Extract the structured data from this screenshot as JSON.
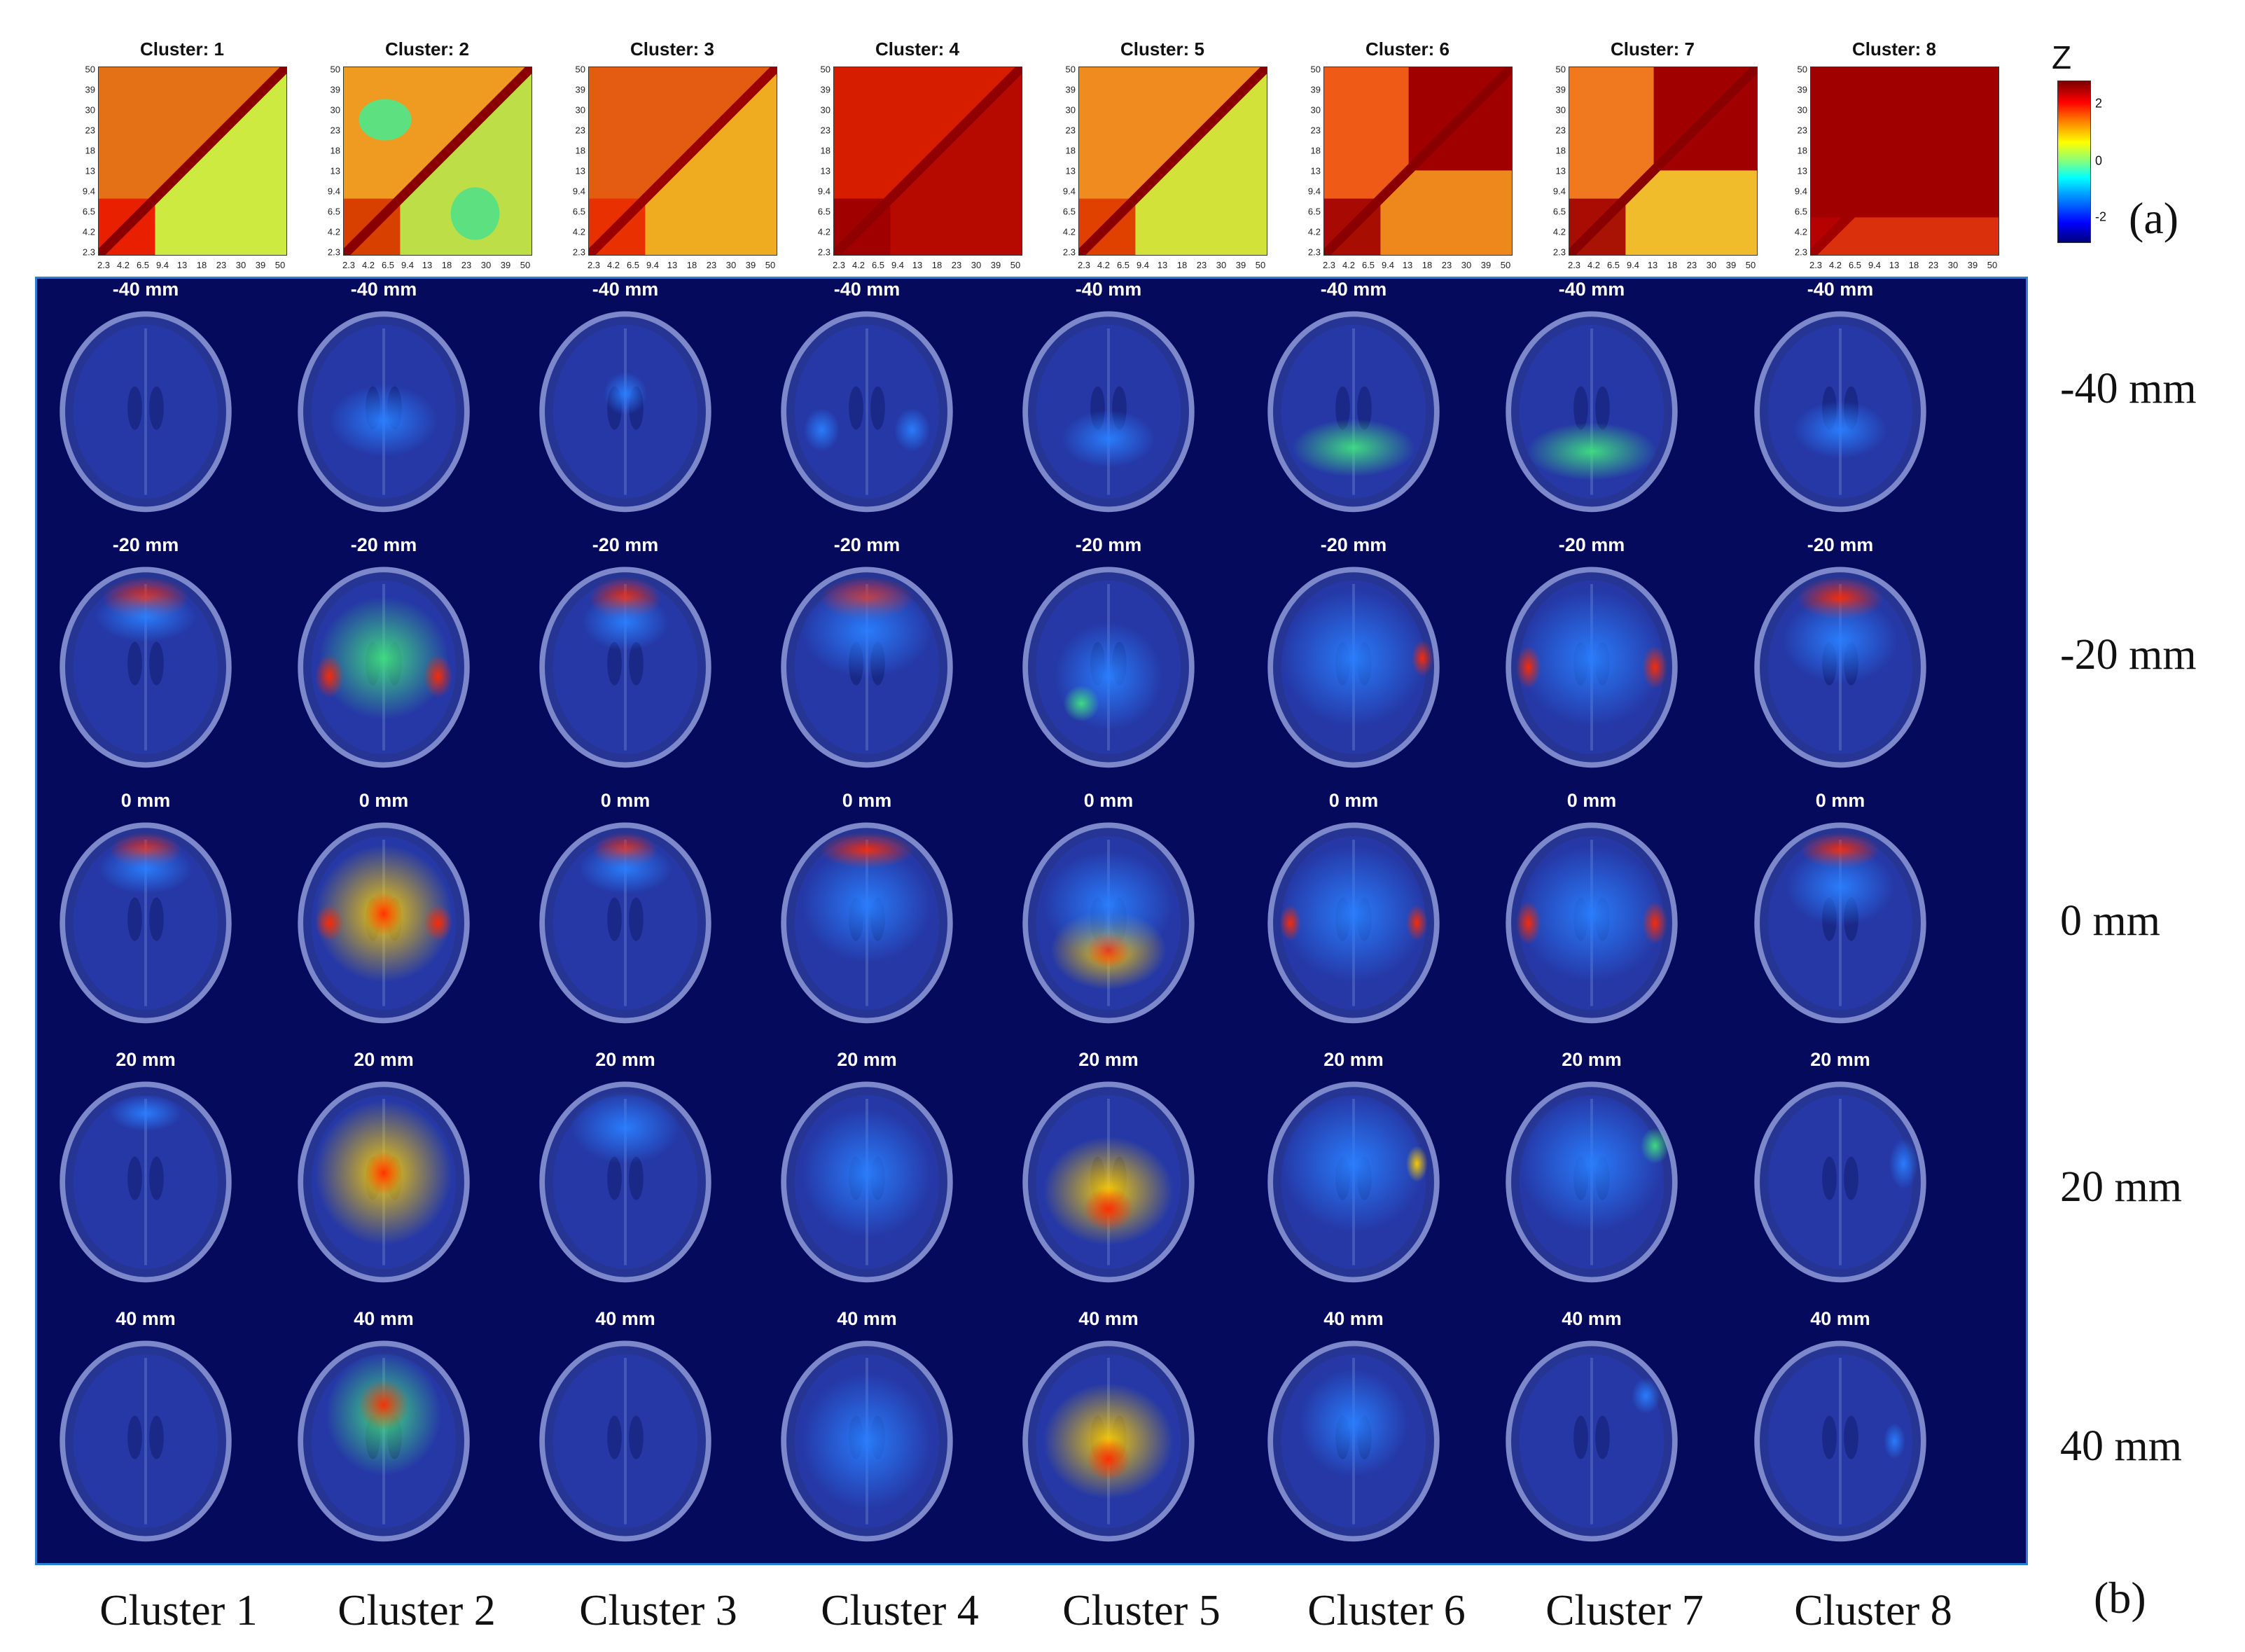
{
  "panel_a": {
    "clusters": [
      {
        "title": "Cluster: 1",
        "style": "c1"
      },
      {
        "title": "Cluster: 2",
        "style": "c2"
      },
      {
        "title": "Cluster: 3",
        "style": "c3"
      },
      {
        "title": "Cluster: 4",
        "style": "c4"
      },
      {
        "title": "Cluster: 5",
        "style": "c5"
      },
      {
        "title": "Cluster: 6",
        "style": "c6"
      },
      {
        "title": "Cluster: 7",
        "style": "c7"
      },
      {
        "title": "Cluster: 8",
        "style": "c8"
      }
    ],
    "y_ticks": [
      "50",
      "39",
      "30",
      "23",
      "18",
      "13",
      "9.4",
      "6.5",
      "4.2",
      "2.3"
    ],
    "x_ticks": [
      "2.3",
      "4.2",
      "6.5",
      "9.4",
      "13",
      "18",
      "23",
      "30",
      "39",
      "50"
    ],
    "colorbar": {
      "label": "Z",
      "ticks": [
        "2",
        "0",
        "-2"
      ],
      "range": [
        -3,
        3
      ]
    },
    "label": "(a)"
  },
  "panel_b": {
    "slice_labels": [
      "-40 mm",
      "-20 mm",
      "0 mm",
      "20 mm",
      "40 mm"
    ],
    "row_labels": [
      "-40 mm",
      "-20 mm",
      "0 mm",
      "20 mm",
      "40 mm"
    ],
    "column_labels": [
      "Cluster 1",
      "Cluster 2",
      "Cluster 3",
      "Cluster 4",
      "Cluster 5",
      "Cluster 6",
      "Cluster 7",
      "Cluster 8"
    ],
    "label": "(b)"
  },
  "colors": {
    "panel_bg": "#050a5c",
    "panel_border": "#2a7fd0",
    "hot": "#ff2a00",
    "warm": "#ffd000",
    "mid": "#40e080",
    "cool": "#2a7fff"
  }
}
